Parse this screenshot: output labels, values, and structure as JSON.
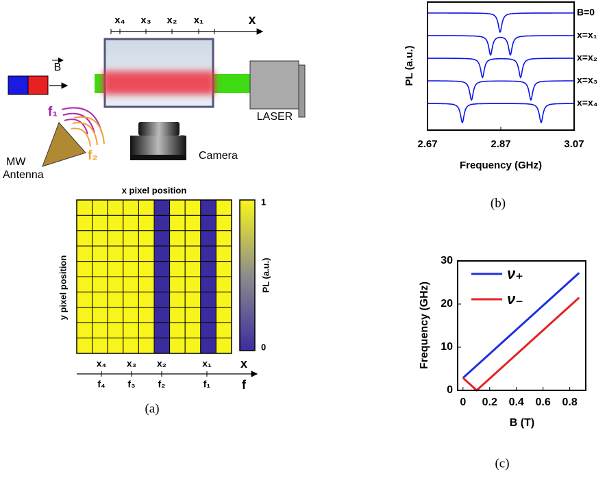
{
  "diagram": {
    "field_label": "B",
    "axis_labels": [
      "x₄",
      "x₃",
      "x₂",
      "x₁",
      "x"
    ],
    "laser": "LASER",
    "camera": "Camera",
    "antenna_freqs": [
      "f₁",
      "f₂"
    ],
    "antenna": [
      "MW",
      "Antenna"
    ]
  },
  "chart_data": [
    {
      "type": "heatmap",
      "title": "x pixel position",
      "ylabel": "y pixel position",
      "values": [
        [
          1,
          1,
          1,
          1,
          1,
          0,
          1,
          1,
          0,
          1
        ],
        [
          1,
          1,
          1,
          1,
          1,
          0,
          1,
          1,
          0,
          1
        ],
        [
          1,
          1,
          1,
          1,
          1,
          0,
          1,
          1,
          0,
          1
        ],
        [
          1,
          1,
          1,
          1,
          1,
          0,
          1,
          1,
          0,
          1
        ],
        [
          1,
          1,
          1,
          1,
          1,
          0,
          1,
          1,
          0,
          1
        ],
        [
          1,
          1,
          1,
          1,
          1,
          0,
          1,
          1,
          0,
          1
        ],
        [
          1,
          1,
          1,
          1,
          1,
          0,
          1,
          1,
          0,
          1
        ],
        [
          1,
          1,
          1,
          1,
          1,
          0,
          1,
          1,
          0,
          1
        ],
        [
          1,
          1,
          1,
          1,
          1,
          0,
          1,
          1,
          0,
          1
        ],
        [
          1,
          1,
          1,
          1,
          1,
          0,
          1,
          1,
          0,
          1
        ]
      ],
      "colormap": [
        "#3b2c9e",
        "#8c8c8c",
        "#f7f51c"
      ],
      "colorbar_label": "PL (a.u.)",
      "clim": [
        0,
        1
      ],
      "cticks": [
        0,
        1
      ],
      "x_labels": [
        "x₄",
        "x₃",
        "x₂",
        "x₁",
        "x"
      ],
      "f_labels": [
        "f₄",
        "f₃",
        "f₂",
        "f₁",
        "f"
      ]
    },
    {
      "type": "spectrum",
      "xlabel": "Frequency (GHz)",
      "ylabel": "PL (a.u.)",
      "xlim": [
        2.67,
        3.07
      ],
      "xticks": [
        2.67,
        2.87,
        3.07
      ],
      "series": [
        {
          "name": "B=0",
          "color": "#0a14e6",
          "dips": [
            2.868
          ]
        },
        {
          "name": "x=x₁",
          "color": "#0a14e6",
          "dips": [
            2.842,
            2.896
          ]
        },
        {
          "name": "x=x₂",
          "color": "#0a14e6",
          "dips": [
            2.82,
            2.924
          ]
        },
        {
          "name": "x=x₃",
          "color": "#0a14e6",
          "dips": [
            2.79,
            2.952
          ]
        },
        {
          "name": "x=x₄",
          "color": "#0a14e6",
          "dips": [
            2.765,
            2.98
          ]
        }
      ]
    },
    {
      "type": "line",
      "xlabel": "B (T)",
      "ylabel": "Frequency (GHz)",
      "xlim": [
        -0.04,
        0.92
      ],
      "ylim": [
        0,
        30
      ],
      "xticks": [
        0,
        0.2,
        0.4,
        0.6,
        0.8
      ],
      "yticks": [
        0,
        10,
        20,
        30
      ],
      "legend": "upper left",
      "x": [
        0,
        0.1025,
        0.87
      ],
      "series": [
        {
          "name": "ν₊",
          "color": "#1f2ee0",
          "values": [
            2.87,
            5.74,
            27.23
          ]
        },
        {
          "name": "ν₋",
          "color": "#e52222",
          "values": [
            2.87,
            0,
            21.49
          ]
        }
      ]
    }
  ],
  "captions": [
    "(a)",
    "(b)",
    "(c)"
  ]
}
